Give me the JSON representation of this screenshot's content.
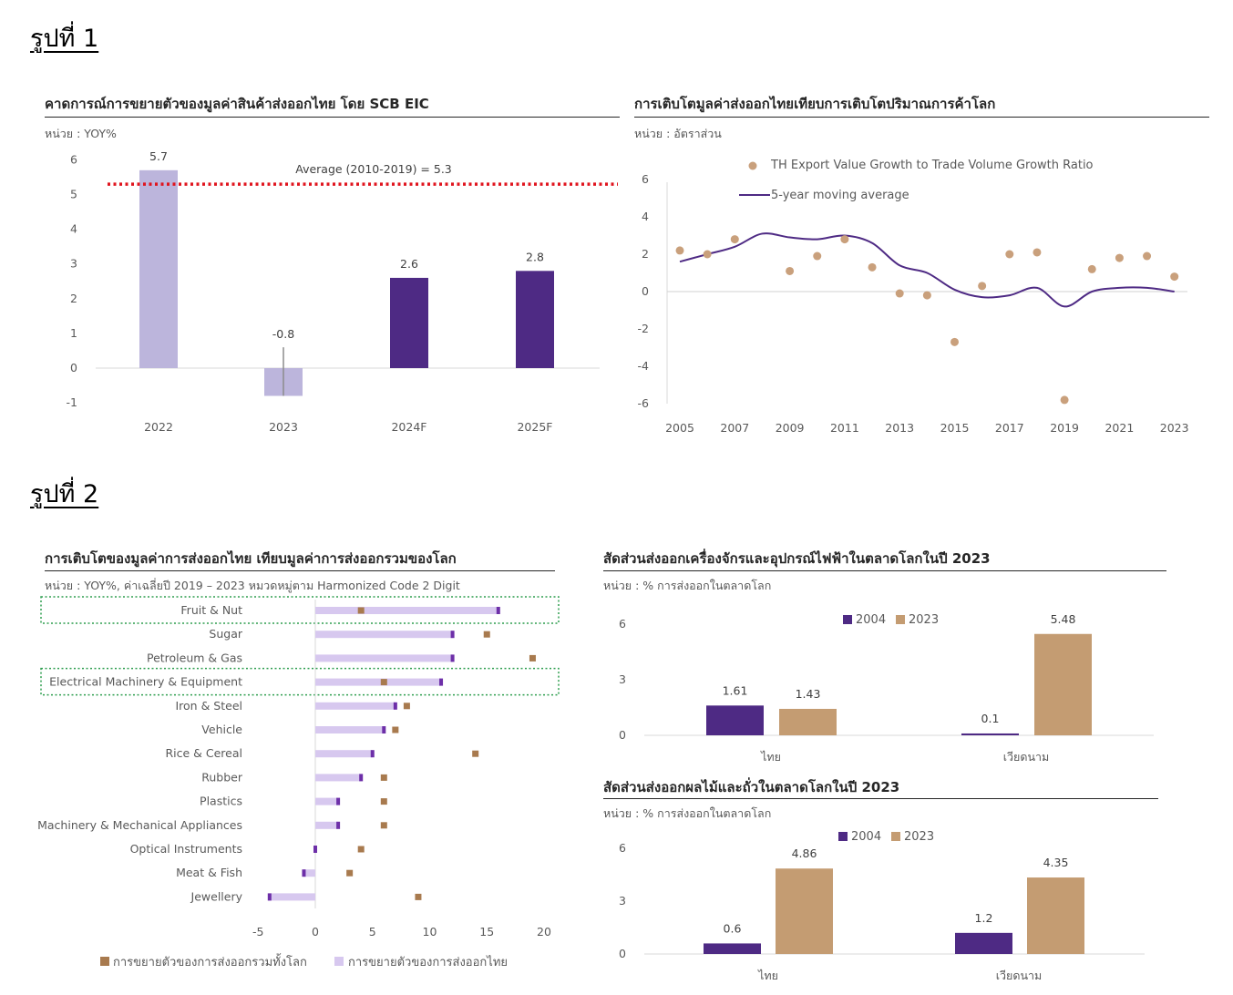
{
  "figure1": {
    "label": "รูปที่ 1"
  },
  "figure2": {
    "label": "รูปที่ 2"
  },
  "chart_data": [
    {
      "id": "c1",
      "type": "bar",
      "title": "คาดการณ์การขยายตัวของมูลค่าสินค้าส่งออกไทย  โดย SCB EIC",
      "unit": "หน่วย : YOY%",
      "categories": [
        "2022",
        "2023",
        "2024F",
        "2025F"
      ],
      "values": [
        5.7,
        -0.8,
        2.6,
        2.8
      ],
      "value_labels": [
        "5.7",
        "-0.8",
        "2.6",
        "2.8"
      ],
      "colors": [
        "#bcb5dc",
        "#bcb5dc",
        "#4e2a84",
        "#4e2a84"
      ],
      "error_bar": {
        "category": "2023",
        "low": -0.8,
        "high": 0.6
      },
      "ylim": [
        -1,
        6
      ],
      "yticks": [
        "6",
        "5",
        "4",
        "3",
        "2",
        "1",
        "0",
        "-1"
      ],
      "average_line": {
        "value": 5.3,
        "label": "Average (2010-2019) = 5.3",
        "color": "#e0141e"
      }
    },
    {
      "id": "c2",
      "type": "line",
      "title": "การเติบโตมูลค่าส่งออกไทยเทียบการเติบโตปริมาณการค้าโลก",
      "unit": "หน่วย : อัตราส่วน",
      "x": [
        2005,
        2006,
        2007,
        2008,
        2009,
        2010,
        2011,
        2012,
        2013,
        2014,
        2015,
        2016,
        2017,
        2018,
        2019,
        2020,
        2021,
        2022,
        2023
      ],
      "xticks": [
        "2005",
        "2007",
        "2009",
        "2011",
        "2013",
        "2015",
        "2017",
        "2019",
        "2021",
        "2023"
      ],
      "ylim": [
        -6,
        6
      ],
      "yticks": [
        "6",
        "4",
        "2",
        "0",
        "-2",
        "-4",
        "-6"
      ],
      "series": [
        {
          "name": "TH Export Value Growth to Trade Volume Growth Ratio",
          "kind": "scatter",
          "color": "#c9a07c",
          "values": [
            2.2,
            2.0,
            2.8,
            null,
            1.1,
            1.9,
            2.8,
            1.3,
            -0.1,
            -0.2,
            -2.7,
            0.3,
            2.0,
            2.1,
            -5.8,
            1.2,
            1.8,
            1.9,
            0.8
          ]
        },
        {
          "name": "5-year moving average",
          "kind": "line",
          "color": "#4e2a84",
          "values": [
            1.6,
            2.0,
            2.4,
            3.1,
            2.9,
            2.8,
            3.0,
            2.6,
            1.4,
            1.0,
            0.1,
            -0.3,
            -0.2,
            0.2,
            -0.8,
            0.0,
            0.2,
            0.2,
            0.0
          ]
        }
      ]
    },
    {
      "id": "c3",
      "type": "bar",
      "orientation": "horizontal",
      "title": "การเติบโตของมูลค่าการส่งออกไทย  เทียบมูลค่าการส่งออกรวมของโลก",
      "unit": "หน่วย : YOY%, ค่าเฉลี่ยปี 2019 – 2023 หมวดหมู่ตาม Harmonized Code 2 Digit",
      "categories": [
        "Fruit & Nut",
        "Sugar",
        "Petroleum & Gas",
        "Electrical Machinery & Equipment",
        "Iron & Steel",
        "Vehicle",
        "Rice & Cereal",
        "Rubber",
        "Plastics",
        "Machinery & Mechanical Appliances",
        "Optical Instruments",
        "Meat & Fish",
        "Jewellery"
      ],
      "highlighted": [
        "Fruit & Nut",
        "Electrical Machinery & Equipment"
      ],
      "xlim": [
        -5,
        20
      ],
      "xticks": [
        "-5",
        "0",
        "5",
        "10",
        "15",
        "20"
      ],
      "series": [
        {
          "name": "การขยายตัวของการส่งออกไทย",
          "kind": "bar",
          "color": "#d7c8ef",
          "end_color": "#6d2fa8",
          "values": [
            16,
            12,
            12,
            11,
            7,
            6,
            5,
            4,
            2,
            2,
            0,
            -1,
            -4
          ]
        },
        {
          "name": "การขยายตัวของการส่งออกรวมทั้งโลก",
          "kind": "marker",
          "color": "#a87a4e",
          "values": [
            4,
            15,
            19,
            6,
            8,
            7,
            14,
            6,
            6,
            6,
            4,
            3,
            9
          ]
        }
      ],
      "legend": [
        "การขยายตัวของการส่งออกรวมทั้งโลก",
        "การขยายตัวของการส่งออกไทย"
      ]
    },
    {
      "id": "c4",
      "type": "bar",
      "title": "สัดส่วนส่งออกเครื่องจักรและอุปกรณ์ไฟฟ้าในตลาดโลกในปี  2023",
      "unit": "หน่วย : % การส่งออกในตลาดโลก",
      "categories": [
        "ไทย",
        "เวียดนาม"
      ],
      "ylim": [
        0,
        6
      ],
      "yticks": [
        "6",
        "3",
        "0"
      ],
      "series": [
        {
          "name": "2004",
          "color": "#4e2a84",
          "values": [
            1.61,
            0.1
          ],
          "labels": [
            "1.61",
            "0.1"
          ]
        },
        {
          "name": "2023",
          "color": "#c49c72",
          "values": [
            1.43,
            5.48
          ],
          "labels": [
            "1.43",
            "5.48"
          ]
        }
      ]
    },
    {
      "id": "c5",
      "type": "bar",
      "title": "สัดส่วนส่งออกผลไม้และถั่วในตลาดโลกในปี  2023",
      "unit": "หน่วย : % การส่งออกในตลาดโลก",
      "categories": [
        "ไทย",
        "เวียดนาม"
      ],
      "ylim": [
        0,
        6
      ],
      "yticks": [
        "6",
        "3",
        "0"
      ],
      "series": [
        {
          "name": "2004",
          "color": "#4e2a84",
          "values": [
            0.6,
            1.2
          ],
          "labels": [
            "0.6",
            "1.2"
          ]
        },
        {
          "name": "2023",
          "color": "#c49c72",
          "values": [
            4.86,
            4.35
          ],
          "labels": [
            "4.86",
            "4.35"
          ]
        }
      ]
    }
  ]
}
